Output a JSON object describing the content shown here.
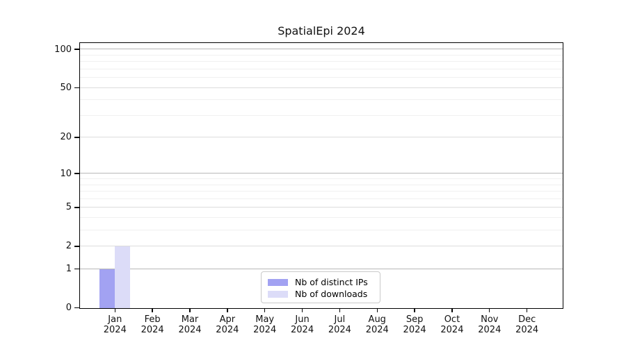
{
  "chart_data": {
    "type": "bar",
    "title": "SpatialEpi 2024",
    "categories": [
      "Jan",
      "Feb",
      "Mar",
      "Apr",
      "May",
      "Jun",
      "Jul",
      "Aug",
      "Sep",
      "Oct",
      "Nov",
      "Dec"
    ],
    "category_year": "2024",
    "series": [
      {
        "name": "Nb of distinct IPs",
        "color": "#a2a2f2",
        "values": [
          1,
          0,
          0,
          0,
          0,
          0,
          0,
          0,
          0,
          0,
          0,
          0
        ]
      },
      {
        "name": "Nb of downloads",
        "color": "#dcdcf8",
        "values": [
          2,
          0,
          0,
          0,
          0,
          0,
          0,
          0,
          0,
          0,
          0,
          0
        ]
      }
    ],
    "yscale": "log10(value+1)",
    "yticks": [
      0,
      1,
      2,
      5,
      10,
      20,
      50,
      100
    ],
    "minor_gridline_values": [
      3,
      4,
      6,
      7,
      8,
      9,
      30,
      40,
      60,
      70,
      80,
      90
    ],
    "ylim": [
      0,
      111
    ],
    "grid": "horizontal",
    "legend_position": "bottom-center",
    "colors": {
      "grid_major": "#b8b8b8",
      "grid_mid": "#dcdcdc",
      "grid_minor": "#f0f0f0",
      "axis": "#000000"
    }
  }
}
